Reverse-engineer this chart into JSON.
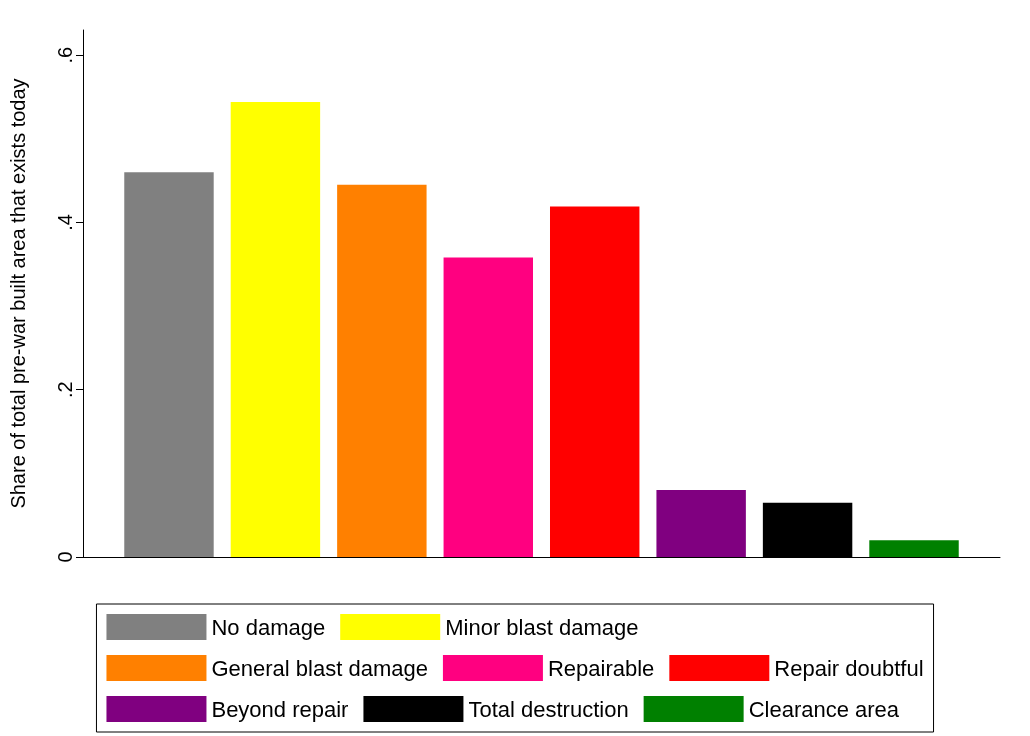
{
  "chart_data": {
    "type": "bar",
    "ylabel": "Share of total pre-war built area that exists today",
    "categories": [
      null
    ],
    "series": [
      {
        "name": "No damage",
        "color": "#808080",
        "values": [
          0.46
        ]
      },
      {
        "name": "Minor blast damage",
        "color": "#ffff00",
        "values": [
          0.544
        ]
      },
      {
        "name": "General blast damage",
        "color": "#ff8000",
        "values": [
          0.445
        ]
      },
      {
        "name": "Repairable",
        "color": "#ff0080",
        "values": [
          0.358
        ]
      },
      {
        "name": "Repair doubtful",
        "color": "#ff0000",
        "values": [
          0.419
        ]
      },
      {
        "name": "Beyond repair",
        "color": "#800080",
        "values": [
          0.08
        ]
      },
      {
        "name": "Total destruction",
        "color": "#000000",
        "values": [
          0.065
        ]
      },
      {
        "name": "Clearance area",
        "color": "#008000",
        "values": [
          0.02
        ]
      }
    ],
    "ylim": [
      0,
      0.63
    ],
    "yticks": [
      0,
      {
        "value": 0.2,
        "label": ".2"
      },
      {
        "value": 0.4,
        "label": ".4"
      },
      {
        "value": 0.6,
        "label": ".6"
      }
    ],
    "grid": false,
    "legend": "bottom"
  }
}
